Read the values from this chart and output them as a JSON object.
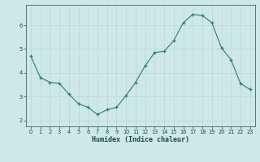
{
  "x": [
    0,
    1,
    2,
    3,
    4,
    5,
    6,
    7,
    8,
    9,
    10,
    11,
    12,
    13,
    14,
    15,
    16,
    17,
    18,
    19,
    20,
    21,
    22,
    23
  ],
  "y": [
    4.7,
    3.8,
    3.6,
    3.55,
    3.1,
    2.7,
    2.55,
    2.25,
    2.45,
    2.55,
    3.05,
    3.6,
    4.3,
    4.85,
    4.9,
    5.35,
    6.1,
    6.45,
    6.4,
    6.1,
    5.05,
    4.55,
    3.55,
    3.3
  ],
  "xlabel": "Humidex (Indice chaleur)",
  "bg_color": "#cde8e5",
  "line_color": "#2e7d6e",
  "grid_color": "#b8d8d4",
  "ylim": [
    1.75,
    6.85
  ],
  "xlim": [
    -0.5,
    23.5
  ],
  "yticks": [
    2,
    3,
    4,
    5,
    6
  ],
  "xticks": [
    0,
    1,
    2,
    3,
    4,
    5,
    6,
    7,
    8,
    9,
    10,
    11,
    12,
    13,
    14,
    15,
    16,
    17,
    18,
    19,
    20,
    21,
    22,
    23
  ]
}
